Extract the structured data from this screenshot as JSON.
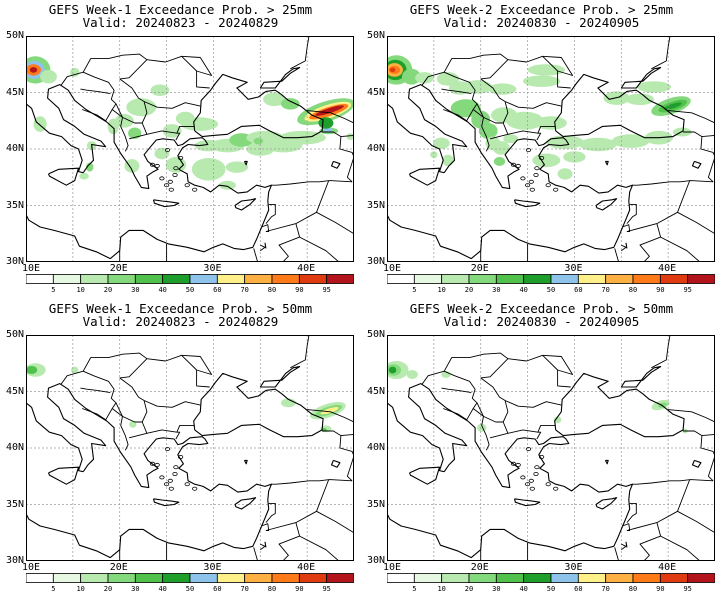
{
  "panels": [
    {
      "title": "GEFS Week-1 Exceedance Prob. > 25mm",
      "valid": "Valid: 20240823 - 20240829"
    },
    {
      "title": "GEFS Week-2 Exceedance Prob. > 25mm",
      "valid": "Valid: 20240830 - 20240905"
    },
    {
      "title": "GEFS Week-1 Exceedance Prob. > 50mm",
      "valid": "Valid: 20240823 - 20240829"
    },
    {
      "title": "GEFS Week-2 Exceedance Prob. > 50mm",
      "valid": "Valid: 20240830 - 20240905"
    }
  ],
  "axes": {
    "lat_labels": [
      "50N",
      "45N",
      "40N",
      "35N",
      "30N"
    ],
    "lon_labels": [
      "10E",
      "20E",
      "30E",
      "40E"
    ]
  },
  "colorbar": {
    "labels": [
      "5",
      "10",
      "20",
      "30",
      "40",
      "50",
      "60",
      "70",
      "80",
      "90",
      "95"
    ],
    "colors": [
      "#ffffff",
      "#e6f8e2",
      "#b8eab0",
      "#84d97c",
      "#50c24c",
      "#1e9e2a",
      "#8ec4ec",
      "#fff08a",
      "#ffb043",
      "#ff7b1a",
      "#e03a10",
      "#b3131a"
    ]
  }
}
